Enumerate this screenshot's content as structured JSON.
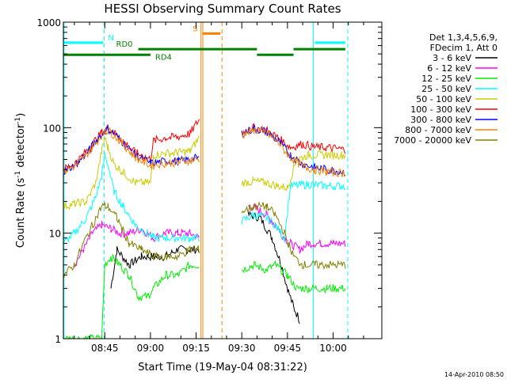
{
  "chart_data": {
    "type": "line",
    "title": "HESSI Observing Summary Count Rates",
    "xlabel": "Start Time (19-May-04 08:31:22)",
    "ylabel": "Count Rate (s",
    "ylabel_sup": "-1",
    "ylabel_mid": " detector",
    "ylabel_end": ")",
    "yscale": "log",
    "xlim": [
      511.4,
      616
    ],
    "ylim": [
      1,
      1000
    ],
    "x_units": "minutes after 00:00 UT",
    "x_ticks": [
      {
        "label": "08:45",
        "x": 525
      },
      {
        "label": "09:00",
        "x": 540
      },
      {
        "label": "09:15",
        "x": 555
      },
      {
        "label": "09:30",
        "x": 570
      },
      {
        "label": "09:45",
        "x": 585
      },
      {
        "label": "10:00",
        "x": 600
      }
    ],
    "y_ticks": [
      {
        "label": "1",
        "y": 1
      },
      {
        "label": "10",
        "y": 10
      },
      {
        "label": "100",
        "y": 100
      },
      {
        "label": "1000",
        "y": 1000
      }
    ],
    "legend": {
      "placement": "right",
      "header": [
        "Det 1,3,4,5,6,9,",
        "FDecim 1, Att 0"
      ]
    },
    "series": [
      {
        "name": "3 - 6 keV",
        "color": "#000000",
        "points": [
          [
            527,
            3
          ],
          [
            529,
            7
          ],
          [
            533,
            5
          ],
          [
            537,
            6
          ],
          [
            541,
            6
          ],
          [
            545,
            6
          ],
          [
            549,
            7
          ],
          [
            553,
            7
          ],
          [
            556,
            7
          ],
          [
            572,
            15
          ],
          [
            576,
            14
          ],
          [
            580,
            9
          ],
          [
            583,
            5
          ],
          [
            585,
            3
          ],
          [
            587,
            2
          ],
          [
            589,
            1.5
          ]
        ]
      },
      {
        "name": "6 - 12 keV",
        "color": "#ff00ff",
        "points": [
          [
            515,
            5
          ],
          [
            518,
            7
          ],
          [
            521,
            10
          ],
          [
            524,
            12
          ],
          [
            527,
            11
          ],
          [
            530,
            10
          ],
          [
            533,
            10
          ],
          [
            537,
            11
          ],
          [
            541,
            9
          ],
          [
            545,
            10
          ],
          [
            549,
            10
          ],
          [
            553,
            10
          ],
          [
            556,
            9
          ],
          [
            572,
            18
          ],
          [
            575,
            17
          ],
          [
            578,
            15
          ],
          [
            581,
            12
          ],
          [
            584,
            9
          ],
          [
            586,
            8
          ],
          [
            589,
            7
          ],
          [
            592,
            8
          ],
          [
            596,
            8
          ],
          [
            600,
            8
          ],
          [
            604,
            8
          ]
        ]
      },
      {
        "name": "12 - 25 keV",
        "color": "#00ee00",
        "points": [
          [
            511.5,
            1
          ],
          [
            524,
            1
          ],
          [
            525,
            5
          ],
          [
            527,
            6
          ],
          [
            530,
            5
          ],
          [
            533,
            4
          ],
          [
            536,
            2.5
          ],
          [
            539,
            2.5
          ],
          [
            541,
            3
          ],
          [
            545,
            4
          ],
          [
            549,
            4
          ],
          [
            553,
            5
          ],
          [
            556,
            5
          ],
          [
            570,
            4.5
          ],
          [
            574,
            5
          ],
          [
            578,
            4.5
          ],
          [
            581,
            5
          ],
          [
            585,
            4
          ],
          [
            588,
            3
          ],
          [
            592,
            3
          ],
          [
            598,
            3
          ],
          [
            604,
            3
          ]
        ]
      },
      {
        "name": "25 - 50 keV",
        "color": "#00ffff",
        "points": [
          [
            511.5,
            8
          ],
          [
            515,
            10
          ],
          [
            519,
            14
          ],
          [
            522,
            22
          ],
          [
            524,
            35
          ],
          [
            525,
            55
          ],
          [
            526,
            45
          ],
          [
            528,
            25
          ],
          [
            531,
            18
          ],
          [
            535,
            12
          ],
          [
            539,
            10
          ],
          [
            541,
            9
          ],
          [
            545,
            9
          ],
          [
            549,
            9
          ],
          [
            553,
            9
          ],
          [
            556,
            9
          ],
          [
            570,
            13
          ],
          [
            574,
            15
          ],
          [
            578,
            14
          ],
          [
            581,
            12
          ],
          [
            584,
            9
          ],
          [
            586,
            28
          ],
          [
            592,
            29
          ],
          [
            598,
            28
          ],
          [
            604,
            28
          ]
        ]
      },
      {
        "name": "50 - 100 keV",
        "color": "#cccc00",
        "points": [
          [
            511.5,
            18
          ],
          [
            515,
            19
          ],
          [
            519,
            20
          ],
          [
            522,
            30
          ],
          [
            524,
            60
          ],
          [
            525,
            80
          ],
          [
            526,
            65
          ],
          [
            528,
            45
          ],
          [
            531,
            38
          ],
          [
            535,
            30
          ],
          [
            540,
            30
          ],
          [
            541,
            55
          ],
          [
            545,
            57
          ],
          [
            549,
            58
          ],
          [
            553,
            60
          ],
          [
            556,
            80
          ],
          [
            570,
            30
          ],
          [
            574,
            31
          ],
          [
            578,
            30
          ],
          [
            582,
            28
          ],
          [
            585,
            27
          ],
          [
            588,
            50
          ],
          [
            592,
            55
          ],
          [
            598,
            55
          ],
          [
            604,
            55
          ]
        ]
      },
      {
        "name": "100 - 300 keV",
        "color": "#ff0000",
        "points": [
          [
            511.5,
            40
          ],
          [
            516,
            48
          ],
          [
            520,
            65
          ],
          [
            524,
            90
          ],
          [
            526,
            100
          ],
          [
            528,
            90
          ],
          [
            531,
            75
          ],
          [
            535,
            58
          ],
          [
            540,
            50
          ],
          [
            541,
            75
          ],
          [
            545,
            80
          ],
          [
            549,
            82
          ],
          [
            553,
            88
          ],
          [
            556,
            120
          ],
          [
            570,
            90
          ],
          [
            574,
            100
          ],
          [
            578,
            95
          ],
          [
            582,
            80
          ],
          [
            586,
            65
          ],
          [
            590,
            70
          ],
          [
            594,
            65
          ],
          [
            598,
            65
          ],
          [
            604,
            62
          ]
        ]
      },
      {
        "name": "300 - 800 keV",
        "color": "#0000ff",
        "points": [
          [
            511.5,
            38
          ],
          [
            516,
            46
          ],
          [
            520,
            62
          ],
          [
            524,
            88
          ],
          [
            526,
            98
          ],
          [
            528,
            88
          ],
          [
            531,
            72
          ],
          [
            535,
            55
          ],
          [
            540,
            46
          ],
          [
            545,
            48
          ],
          [
            549,
            48
          ],
          [
            553,
            50
          ],
          [
            556,
            52
          ],
          [
            570,
            88
          ],
          [
            574,
            98
          ],
          [
            578,
            92
          ],
          [
            582,
            75
          ],
          [
            586,
            55
          ],
          [
            590,
            45
          ],
          [
            594,
            42
          ],
          [
            598,
            40
          ],
          [
            604,
            38
          ]
        ]
      },
      {
        "name": "800 - 7000 keV",
        "color": "#ff8000",
        "points": [
          [
            511.5,
            38
          ],
          [
            516,
            45
          ],
          [
            520,
            60
          ],
          [
            524,
            85
          ],
          [
            526,
            95
          ],
          [
            528,
            85
          ],
          [
            531,
            70
          ],
          [
            535,
            52
          ],
          [
            540,
            44
          ],
          [
            545,
            46
          ],
          [
            549,
            47
          ],
          [
            553,
            49
          ],
          [
            556,
            50
          ],
          [
            570,
            85
          ],
          [
            574,
            95
          ],
          [
            578,
            90
          ],
          [
            582,
            72
          ],
          [
            586,
            52
          ],
          [
            590,
            43
          ],
          [
            594,
            40
          ],
          [
            598,
            38
          ],
          [
            604,
            37
          ]
        ]
      },
      {
        "name": "7000 - 20000 keV",
        "color": "#808000",
        "points": [
          [
            511.5,
            4
          ],
          [
            515,
            5
          ],
          [
            518,
            8
          ],
          [
            521,
            12
          ],
          [
            524,
            18
          ],
          [
            526,
            18
          ],
          [
            529,
            14
          ],
          [
            533,
            8
          ],
          [
            537,
            7
          ],
          [
            541,
            6
          ],
          [
            545,
            6
          ],
          [
            549,
            6
          ],
          [
            553,
            7
          ],
          [
            556,
            7
          ],
          [
            570,
            16
          ],
          [
            574,
            18
          ],
          [
            578,
            18
          ],
          [
            581,
            15
          ],
          [
            584,
            10
          ],
          [
            587,
            6
          ],
          [
            590,
            5
          ],
          [
            594,
            5
          ],
          [
            598,
            5
          ],
          [
            604,
            5
          ]
        ]
      }
    ],
    "annotations": [
      {
        "text": "N",
        "color": "#00ffff",
        "segments": [
          [
            511.5,
            524.5
          ],
          [
            594,
            604
          ]
        ],
        "y": 640
      },
      {
        "text": "S",
        "color": "#ff8000",
        "segments": [
          [
            557,
            563
          ]
        ],
        "y": 780
      },
      {
        "text": "RD0",
        "color": "#008000",
        "segments": [
          [
            536,
            563
          ],
          [
            563,
            575
          ],
          [
            587,
            604
          ]
        ],
        "y": 555
      },
      {
        "text": "RD4",
        "color": "#008000",
        "segments": [
          [
            511.5,
            540
          ],
          [
            575,
            587
          ]
        ],
        "y": 490
      }
    ],
    "vlines": [
      {
        "x": 524.8,
        "color": "#00ffff",
        "style": "dashed"
      },
      {
        "x": 593.5,
        "color": "#00ffff",
        "style": "solid"
      },
      {
        "x": 604.8,
        "color": "#00ffff",
        "style": "dashed"
      },
      {
        "x": 556.6,
        "color": "#ff8000",
        "style": "solid"
      },
      {
        "x": 557.2,
        "color": "#ff8000",
        "style": "solid"
      },
      {
        "x": 563.5,
        "color": "#ff8000",
        "style": "dashed"
      },
      {
        "x": 511.6,
        "color": "#00ffff",
        "style": "solid"
      }
    ]
  },
  "footer": {
    "stamp": "14-Apr-2010 08:50"
  }
}
